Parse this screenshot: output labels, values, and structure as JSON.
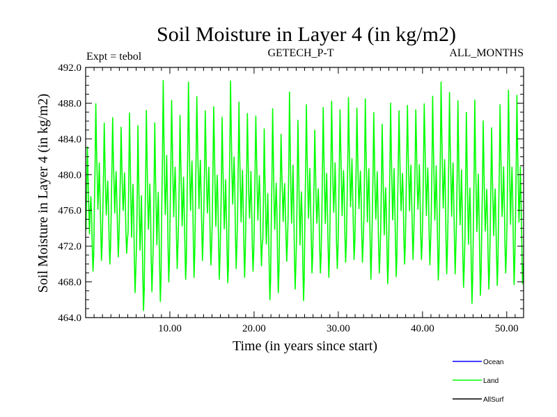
{
  "chart_data": {
    "type": "line",
    "title": "Soil Moisture in Layer 4 (in kg/m2)",
    "subtitle_left": "Expt = tebol",
    "subtitle_center": "GETECH_P-T",
    "subtitle_right": "ALL_MONTHS",
    "xlabel": "Time (in years since start)",
    "ylabel": "Soil Moisture in Layer 4 (in kg/m2)",
    "xlim": [
      0,
      52
    ],
    "ylim": [
      464,
      492
    ],
    "x_ticks": [
      10,
      20,
      30,
      40,
      50
    ],
    "x_tick_labels": [
      "10.00",
      "20.00",
      "30.00",
      "40.00",
      "50.00"
    ],
    "y_ticks": [
      464,
      468,
      472,
      476,
      480,
      484,
      488,
      492
    ],
    "y_tick_labels": [
      "464.0",
      "468.0",
      "472.0",
      "476.0",
      "480.0",
      "484.0",
      "488.0",
      "492.0"
    ],
    "annual_peaks": [
      483.4,
      488.3,
      486.1,
      486.7,
      485.6,
      487.3,
      485.9,
      487.6,
      486.2,
      491.0,
      488.7,
      487.0,
      490.8,
      489.1,
      487.5,
      488.0,
      486.8,
      490.9,
      488.5,
      487.2,
      486.9,
      485.5,
      487.8,
      484.8,
      489.7,
      486.5,
      488.2,
      485.3,
      487.9,
      488.6,
      487.6,
      489.0,
      487.8,
      488.9,
      487.3,
      486.0,
      488.4,
      487.5,
      488.1,
      487.6,
      488.3,
      489.2,
      490.8,
      489.6,
      488.7,
      487.4,
      488.8,
      486.4,
      485.6,
      488.2,
      489.9,
      489.3
    ],
    "annual_troughs": [
      469.2,
      470.4,
      470.0,
      470.8,
      471.2,
      466.8,
      464.8,
      466.9,
      465.8,
      468.0,
      469.5,
      468.3,
      468.5,
      470.4,
      469.9,
      468.3,
      467.9,
      469.5,
      468.5,
      469.2,
      469.8,
      466.0,
      466.8,
      470.3,
      467.2,
      465.9,
      469.0,
      469.0,
      468.5,
      469.5,
      470.2,
      470.5,
      470.2,
      468.3,
      469.0,
      467.8,
      468.6,
      470.0,
      470.5,
      470.5,
      469.9,
      468.2,
      468.9,
      468.9,
      467.4,
      465.6,
      466.5,
      467.2,
      467.6,
      469.0,
      467.7,
      467.8
    ],
    "series": [
      {
        "name": "Ocean",
        "color": "#0000ff",
        "values": []
      },
      {
        "name": "Land",
        "color": "#00ff00",
        "values": "monthly values synthesized from annual_peaks / annual_troughs"
      },
      {
        "name": "AllSurf",
        "color": "#000000",
        "values": []
      }
    ],
    "legend": [
      {
        "label": "Ocean",
        "color": "#0000ff"
      },
      {
        "label": "Land",
        "color": "#00ff00"
      },
      {
        "label": "AllSurf",
        "color": "#000000"
      }
    ],
    "legend_position": "bottom-right"
  }
}
